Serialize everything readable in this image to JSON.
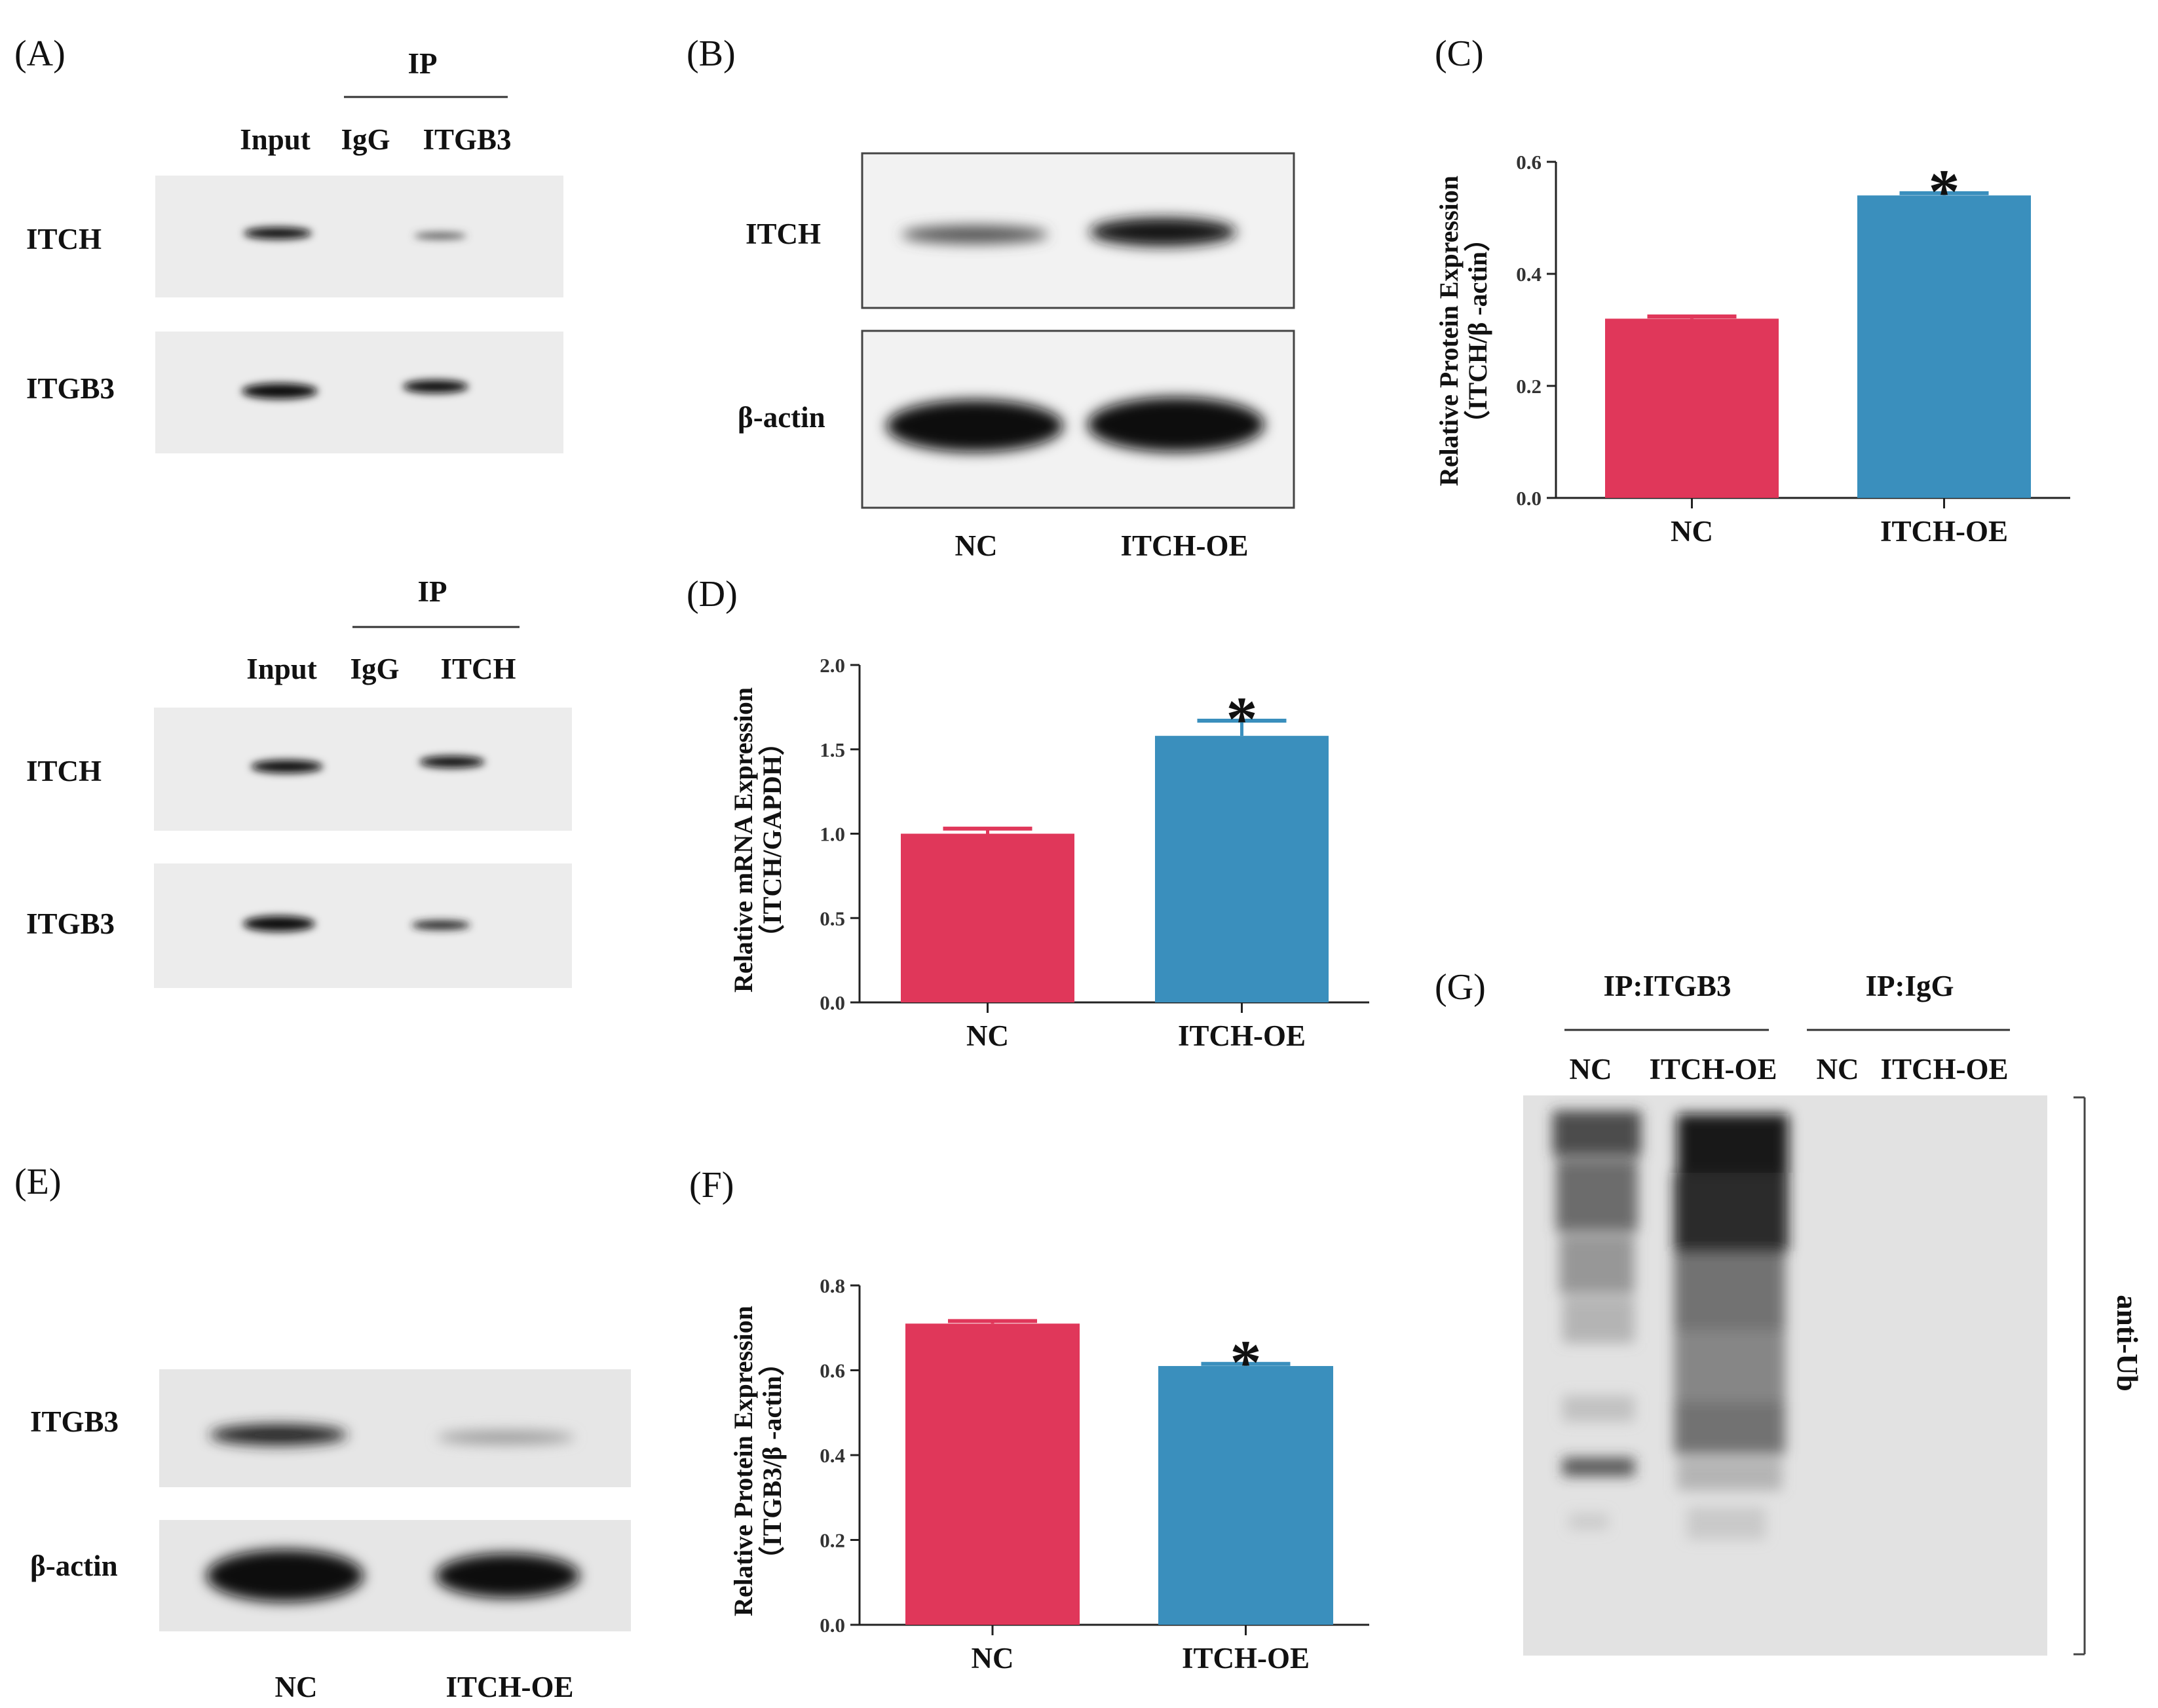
{
  "panels": {
    "A": {
      "label": "(A)",
      "top": {
        "ip": "IP",
        "lanes": [
          "Input",
          "IgG",
          "ITGB3"
        ],
        "rows": [
          "ITCH",
          "ITGB3"
        ]
      },
      "bottom": {
        "ip": "IP",
        "lanes": [
          "Input",
          "IgG",
          "ITCH"
        ],
        "rows": [
          "ITCH",
          "ITGB3"
        ]
      }
    },
    "B": {
      "label": "(B)",
      "rows": [
        "ITCH",
        "β-actin"
      ],
      "lanes": [
        "NC",
        "ITCH-OE"
      ]
    },
    "E": {
      "label": "(E)",
      "rows": [
        "ITGB3",
        "β-actin"
      ],
      "lanes": [
        "NC",
        "ITCH-OE"
      ]
    },
    "G": {
      "label": "(G)",
      "groups": [
        "IP:ITGB3",
        "IP:IgG"
      ],
      "lanes": [
        "NC",
        "ITCH-OE",
        "NC",
        "ITCH-OE"
      ],
      "side": "anti-Ub"
    }
  },
  "colors": {
    "nc": "#e0375a",
    "oe": "#3a8fbd",
    "blot": "#ececec",
    "band": "#111111"
  },
  "chart_data": [
    {
      "panel": "(C)",
      "type": "bar",
      "categories": [
        "NC",
        "ITCH-OE"
      ],
      "values": [
        0.32,
        0.54
      ],
      "errors": [
        0.004,
        0.004
      ],
      "significance": [
        "",
        "*"
      ],
      "ylabel_lines": [
        "Relative Protein Expression",
        "（ITCH/β -actin）"
      ],
      "ylim": [
        0,
        0.6
      ],
      "yticks": [
        "0.0",
        "0.2",
        "0.4",
        "0.6"
      ]
    },
    {
      "panel": "(D)",
      "type": "bar",
      "categories": [
        "NC",
        "ITCH-OE"
      ],
      "values": [
        1.0,
        1.58
      ],
      "errors": [
        0.03,
        0.09
      ],
      "significance": [
        "",
        "*"
      ],
      "ylabel_lines": [
        "Relative mRNA Expression",
        "（ITCH/GAPDH）"
      ],
      "ylim": [
        0,
        2.0
      ],
      "yticks": [
        "0.0",
        "0.5",
        "1.0",
        "1.5",
        "2.0"
      ]
    },
    {
      "panel": "(F)",
      "type": "bar",
      "categories": [
        "NC",
        "ITCH-OE"
      ],
      "values": [
        0.71,
        0.61
      ],
      "errors": [
        0.006,
        0.005
      ],
      "significance": [
        "",
        "*"
      ],
      "ylabel_lines": [
        "Relative Protein Expression",
        "（ITGB3/β -actin）"
      ],
      "ylim": [
        0,
        0.8
      ],
      "yticks": [
        "0.0",
        "0.2",
        "0.4",
        "0.6",
        "0.8"
      ]
    }
  ]
}
